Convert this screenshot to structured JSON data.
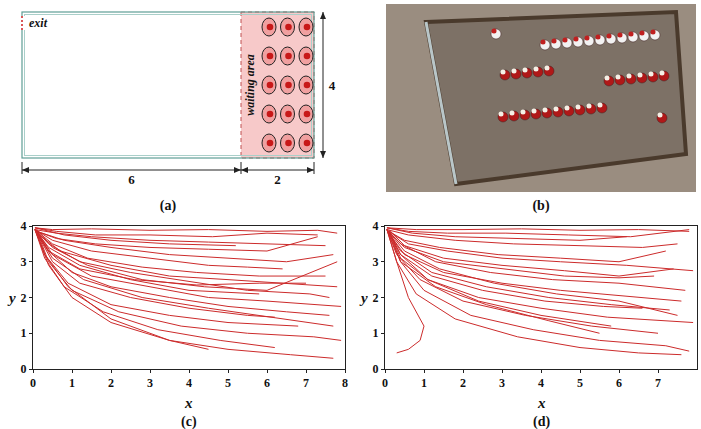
{
  "diagram": {
    "label": "(a)",
    "exit": "exit",
    "waiting_area": "waiting area",
    "dimensions": {
      "main_width": 6,
      "waiting_width": 2,
      "height": 4
    },
    "agents": {
      "rows": 5,
      "columns": 3
    }
  },
  "photo": {
    "label": "(b)"
  },
  "chart_data": [
    {
      "label": "(c)",
      "type": "line",
      "xlabel": "x",
      "ylabel": "y",
      "color": "#cc2b2b",
      "grid": false,
      "xlim": [
        0,
        8
      ],
      "ylim": [
        0,
        4
      ],
      "xticks": [
        0,
        1,
        2,
        3,
        4,
        5,
        6,
        7,
        8
      ],
      "yticks": [
        0,
        1,
        2,
        3,
        4
      ],
      "series": [
        {
          "x": [
            0.05,
            0.5,
            1.5,
            3,
            4.5,
            6,
            7.3,
            7.8
          ],
          "values": [
            3.95,
            3.9,
            3.92,
            3.88,
            3.9,
            3.85,
            3.88,
            3.8
          ]
        },
        {
          "x": [
            0.05,
            0.6,
            1.5,
            3,
            4.5,
            6,
            7.5
          ],
          "values": [
            3.9,
            3.8,
            3.7,
            3.6,
            3.55,
            3.5,
            3.45
          ]
        },
        {
          "x": [
            0.1,
            0.8,
            2,
            3.5,
            5,
            6.5,
            7.7
          ],
          "values": [
            3.85,
            3.6,
            3.4,
            3.2,
            3.1,
            3.0,
            3.2
          ]
        },
        {
          "x": [
            0.05,
            0.5,
            1.5,
            3,
            4.5,
            5.5,
            6.4
          ],
          "values": [
            3.9,
            3.6,
            3.3,
            3.1,
            2.9,
            2.85,
            2.8
          ]
        },
        {
          "x": [
            0.1,
            0.7,
            2,
            3.5,
            5,
            6.5,
            7.8
          ],
          "values": [
            3.8,
            3.3,
            2.9,
            2.6,
            2.5,
            2.4,
            2.3
          ]
        },
        {
          "x": [
            0.05,
            0.4,
            1.2,
            2.5,
            4,
            5.5,
            7.1,
            7.6
          ],
          "values": [
            3.9,
            3.5,
            3.0,
            2.7,
            2.45,
            2.2,
            2.1,
            2.0
          ]
        },
        {
          "x": [
            0.1,
            0.5,
            1.5,
            3,
            4.5,
            6,
            7.9
          ],
          "values": [
            3.85,
            3.2,
            2.6,
            2.3,
            2.0,
            1.9,
            1.75
          ]
        },
        {
          "x": [
            0.05,
            0.4,
            1,
            2,
            3.5,
            5,
            6.5,
            7.6
          ],
          "values": [
            3.9,
            3.3,
            2.7,
            2.3,
            2.0,
            1.75,
            1.6,
            1.5
          ]
        },
        {
          "x": [
            0.1,
            0.5,
            1.2,
            2.5,
            4,
            5.5,
            6.2
          ],
          "values": [
            3.8,
            3.0,
            2.4,
            2.0,
            1.7,
            1.5,
            1.45
          ]
        },
        {
          "x": [
            0.05,
            0.3,
            0.9,
            2,
            3.5,
            5,
            6.8
          ],
          "values": [
            3.9,
            3.2,
            2.4,
            1.8,
            1.5,
            1.3,
            1.2
          ]
        },
        {
          "x": [
            0.1,
            0.4,
            1,
            2.2,
            3.8,
            5.5,
            7.2,
            7.9
          ],
          "values": [
            3.85,
            3.0,
            2.2,
            1.6,
            1.2,
            1.0,
            0.9,
            0.8
          ]
        },
        {
          "x": [
            0.05,
            0.3,
            0.8,
            1.8,
            3.2,
            4.8,
            6.2
          ],
          "values": [
            3.9,
            3.1,
            2.3,
            1.6,
            1.1,
            0.8,
            0.6
          ]
        },
        {
          "x": [
            0.1,
            0.4,
            1,
            2,
            3.5,
            5,
            6.6,
            7.7
          ],
          "values": [
            3.8,
            2.9,
            2.0,
            1.3,
            0.8,
            0.55,
            0.4,
            0.3
          ]
        },
        {
          "x": [
            0.05,
            0.3,
            0.9,
            2,
            3.5,
            4.5
          ],
          "values": [
            3.9,
            3.2,
            2.3,
            1.4,
            0.8,
            0.55
          ]
        },
        {
          "x": [
            0.05,
            0.8,
            2,
            3.5,
            5.2
          ],
          "values": [
            3.95,
            3.75,
            3.6,
            3.5,
            3.45
          ]
        },
        {
          "x": [
            0.1,
            0.6,
            1.6,
            3,
            4.5,
            6,
            7.3
          ],
          "values": [
            3.85,
            3.65,
            3.5,
            3.4,
            3.35,
            3.3,
            3.7
          ]
        },
        {
          "x": [
            0.05,
            0.5,
            1.4,
            2.8,
            4.2,
            5.8,
            7.5
          ],
          "values": [
            3.9,
            3.5,
            3.1,
            2.85,
            2.7,
            2.6,
            2.6
          ]
        },
        {
          "x": [
            0.1,
            0.4,
            1.2,
            2.6,
            4.2,
            5.8,
            7.0
          ],
          "values": [
            3.85,
            3.3,
            2.8,
            2.5,
            2.35,
            2.4,
            2.4
          ]
        },
        {
          "x": [
            0.05,
            0.4,
            1.2,
            2.5,
            4,
            5.8
          ],
          "values": [
            3.9,
            3.4,
            2.9,
            2.5,
            2.2,
            2.1
          ]
        },
        {
          "x": [
            0.1,
            0.5,
            1.3,
            2.8,
            4.5,
            6.4,
            7.7
          ],
          "values": [
            3.8,
            3.1,
            2.5,
            2.0,
            1.7,
            1.4,
            1.2
          ]
        },
        {
          "x": [
            0.05,
            0.6,
            1.6,
            3,
            4.6,
            6,
            7.3
          ],
          "values": [
            3.95,
            3.85,
            3.75,
            3.75,
            3.7,
            3.8,
            3.75
          ]
        },
        {
          "x": [
            0.1,
            0.5,
            1.4,
            2.8,
            4.4,
            6,
            7.8
          ],
          "values": [
            3.9,
            3.4,
            2.9,
            2.5,
            2.3,
            2.2,
            3.0
          ]
        }
      ]
    },
    {
      "label": "(d)",
      "type": "line",
      "xlabel": "x",
      "ylabel": "y",
      "color": "#cc2b2b",
      "grid": false,
      "xlim": [
        0,
        8
      ],
      "ylim": [
        0,
        4
      ],
      "xticks": [
        0,
        1,
        2,
        3,
        4,
        5,
        6,
        7
      ],
      "yticks": [
        0,
        1,
        2,
        3,
        4
      ],
      "series": [
        {
          "x": [
            0.05,
            0.8,
            2,
            3.5,
            5,
            6.5,
            7.8
          ],
          "values": [
            3.95,
            3.9,
            3.9,
            3.92,
            3.88,
            3.9,
            3.85
          ]
        },
        {
          "x": [
            0.05,
            0.6,
            1.8,
            3.3,
            5,
            6.6,
            7.5
          ],
          "values": [
            3.9,
            3.75,
            3.6,
            3.5,
            3.45,
            3.4,
            3.5
          ]
        },
        {
          "x": [
            0.1,
            0.6,
            1.6,
            3,
            4.5,
            6.2,
            7.9
          ],
          "values": [
            3.85,
            3.5,
            3.3,
            3.1,
            3.0,
            2.9,
            2.75
          ]
        },
        {
          "x": [
            0.05,
            0.5,
            1.5,
            3,
            4.6,
            6,
            6.9
          ],
          "values": [
            3.9,
            3.4,
            3.0,
            2.8,
            2.6,
            2.55,
            2.6
          ]
        },
        {
          "x": [
            0.1,
            0.5,
            1.5,
            3,
            4.5,
            6,
            7.6
          ],
          "values": [
            3.8,
            3.2,
            2.7,
            2.4,
            2.2,
            2.05,
            1.9
          ]
        },
        {
          "x": [
            0.05,
            0.4,
            1.2,
            2.6,
            4.2,
            5.8,
            7.3
          ],
          "values": [
            3.9,
            3.3,
            2.7,
            2.3,
            2.0,
            1.8,
            1.65
          ]
        },
        {
          "x": [
            0.1,
            0.4,
            1.1,
            2.4,
            4,
            5.7,
            7.9
          ],
          "values": [
            3.85,
            3.1,
            2.5,
            2.0,
            1.7,
            1.45,
            1.3
          ]
        },
        {
          "x": [
            0.05,
            0.3,
            0.9,
            2,
            3.6,
            5.3,
            7.0
          ],
          "values": [
            3.9,
            3.2,
            2.5,
            1.9,
            1.5,
            1.2,
            1.0
          ]
        },
        {
          "x": [
            0.1,
            0.4,
            1,
            2.2,
            3.8,
            5.5,
            7.2,
            7.8
          ],
          "values": [
            3.85,
            3.0,
            2.2,
            1.5,
            1.1,
            0.8,
            0.65,
            0.5
          ]
        },
        {
          "x": [
            0.05,
            0.3,
            0.8,
            1.8,
            3.4,
            5,
            6.5,
            7.6
          ],
          "values": [
            3.9,
            3.0,
            2.1,
            1.4,
            0.9,
            0.6,
            0.45,
            0.4
          ]
        },
        {
          "x": [
            0.05,
            0.3,
            0.6,
            1.0,
            0.9,
            0.6,
            0.3
          ],
          "values": [
            3.9,
            3.0,
            2.0,
            1.2,
            0.8,
            0.55,
            0.45
          ]
        },
        {
          "x": [
            0.05,
            0.7,
            1.8,
            3.3,
            5,
            6.2
          ],
          "values": [
            3.95,
            3.8,
            3.7,
            3.65,
            3.6,
            3.7
          ]
        },
        {
          "x": [
            0.1,
            0.5,
            1.4,
            2.9,
            4.5,
            6,
            7.2
          ],
          "values": [
            3.85,
            3.6,
            3.4,
            3.2,
            3.1,
            3.0,
            3.3
          ]
        },
        {
          "x": [
            0.05,
            0.4,
            1.3,
            2.7,
            4.3,
            6,
            7.7
          ],
          "values": [
            3.9,
            3.5,
            3.0,
            2.7,
            2.5,
            2.4,
            2.2
          ]
        },
        {
          "x": [
            0.1,
            0.4,
            1.2,
            2.5,
            4.1,
            5.6,
            6.6
          ],
          "values": [
            3.8,
            3.2,
            2.6,
            2.2,
            1.9,
            1.75,
            1.7
          ]
        },
        {
          "x": [
            0.05,
            0.5,
            1.4,
            2.8,
            4.4,
            6,
            7.5
          ],
          "values": [
            3.9,
            3.3,
            2.8,
            2.4,
            2.1,
            1.9,
            1.5
          ]
        },
        {
          "x": [
            0.1,
            0.4,
            1.1,
            2.4,
            4,
            5.8
          ],
          "values": [
            3.85,
            3.2,
            2.5,
            1.9,
            1.5,
            1.2
          ]
        },
        {
          "x": [
            0.05,
            0.6,
            1.6,
            3.1,
            4.7,
            6.3,
            7.8
          ],
          "values": [
            3.95,
            3.85,
            3.8,
            3.8,
            3.75,
            3.7,
            3.9
          ]
        },
        {
          "x": [
            0.1,
            0.5,
            1.5,
            3,
            4.6,
            6,
            7.4
          ],
          "values": [
            3.9,
            3.45,
            3.1,
            2.9,
            2.75,
            2.6,
            2.8
          ]
        },
        {
          "x": [
            0.05,
            0.4,
            1.3,
            2.6,
            4.2,
            5.5
          ],
          "values": [
            3.9,
            3.0,
            2.3,
            1.8,
            1.35,
            1.0
          ]
        }
      ]
    }
  ]
}
